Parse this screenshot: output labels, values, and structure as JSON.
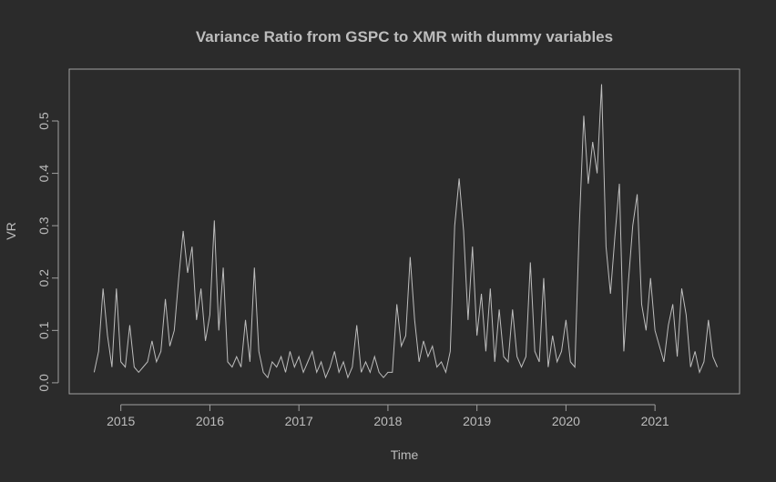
{
  "chart_data": {
    "type": "line",
    "title": "Variance Ratio from GSPC to XMR with dummy variables",
    "x_label": "Time",
    "y_label": "VR",
    "x": [
      2014.7,
      2014.75,
      2014.8,
      2014.85,
      2014.9,
      2014.95,
      2015.0,
      2015.05,
      2015.1,
      2015.15,
      2015.2,
      2015.25,
      2015.3,
      2015.35,
      2015.4,
      2015.45,
      2015.5,
      2015.55,
      2015.6,
      2015.65,
      2015.7,
      2015.75,
      2015.8,
      2015.85,
      2015.9,
      2015.95,
      2016.0,
      2016.05,
      2016.1,
      2016.15,
      2016.2,
      2016.25,
      2016.3,
      2016.35,
      2016.4,
      2016.45,
      2016.5,
      2016.55,
      2016.6,
      2016.65,
      2016.7,
      2016.75,
      2016.8,
      2016.85,
      2016.9,
      2016.95,
      2017.0,
      2017.05,
      2017.1,
      2017.15,
      2017.2,
      2017.25,
      2017.3,
      2017.35,
      2017.4,
      2017.45,
      2017.5,
      2017.55,
      2017.6,
      2017.65,
      2017.7,
      2017.75,
      2017.8,
      2017.85,
      2017.9,
      2017.95,
      2018.0,
      2018.05,
      2018.1,
      2018.15,
      2018.2,
      2018.25,
      2018.3,
      2018.35,
      2018.4,
      2018.45,
      2018.5,
      2018.55,
      2018.6,
      2018.65,
      2018.7,
      2018.75,
      2018.8,
      2018.85,
      2018.9,
      2018.95,
      2019.0,
      2019.05,
      2019.1,
      2019.15,
      2019.2,
      2019.25,
      2019.3,
      2019.35,
      2019.4,
      2019.45,
      2019.5,
      2019.55,
      2019.6,
      2019.65,
      2019.7,
      2019.75,
      2019.8,
      2019.85,
      2019.9,
      2019.95,
      2020.0,
      2020.05,
      2020.1,
      2020.15,
      2020.2,
      2020.25,
      2020.3,
      2020.35,
      2020.4,
      2020.45,
      2020.5,
      2020.55,
      2020.6,
      2020.65,
      2020.7,
      2020.75,
      2020.8,
      2020.85,
      2020.9,
      2020.95,
      2021.0,
      2021.05,
      2021.1,
      2021.15,
      2021.2,
      2021.25,
      2021.3,
      2021.35,
      2021.4,
      2021.45,
      2021.5,
      2021.55,
      2021.6,
      2021.65,
      2021.7
    ],
    "series": [
      {
        "color": "#bdbdbd",
        "values": [
          0.02,
          0.06,
          0.18,
          0.09,
          0.03,
          0.18,
          0.04,
          0.03,
          0.11,
          0.03,
          0.02,
          0.03,
          0.04,
          0.08,
          0.04,
          0.06,
          0.16,
          0.07,
          0.1,
          0.2,
          0.29,
          0.21,
          0.26,
          0.12,
          0.18,
          0.08,
          0.13,
          0.31,
          0.1,
          0.22,
          0.04,
          0.03,
          0.05,
          0.03,
          0.12,
          0.04,
          0.22,
          0.06,
          0.02,
          0.01,
          0.04,
          0.03,
          0.05,
          0.02,
          0.06,
          0.03,
          0.05,
          0.02,
          0.04,
          0.06,
          0.02,
          0.04,
          0.01,
          0.03,
          0.06,
          0.02,
          0.04,
          0.01,
          0.03,
          0.11,
          0.02,
          0.04,
          0.02,
          0.05,
          0.02,
          0.01,
          0.02,
          0.02,
          0.15,
          0.07,
          0.09,
          0.24,
          0.12,
          0.04,
          0.08,
          0.05,
          0.07,
          0.03,
          0.04,
          0.02,
          0.06,
          0.3,
          0.39,
          0.29,
          0.12,
          0.26,
          0.09,
          0.17,
          0.06,
          0.18,
          0.04,
          0.14,
          0.05,
          0.04,
          0.14,
          0.05,
          0.03,
          0.05,
          0.23,
          0.06,
          0.04,
          0.2,
          0.03,
          0.09,
          0.04,
          0.06,
          0.12,
          0.04,
          0.03,
          0.3,
          0.51,
          0.38,
          0.46,
          0.4,
          0.57,
          0.26,
          0.17,
          0.28,
          0.38,
          0.06,
          0.19,
          0.3,
          0.36,
          0.15,
          0.1,
          0.2,
          0.1,
          0.07,
          0.04,
          0.11,
          0.15,
          0.05,
          0.18,
          0.13,
          0.03,
          0.06,
          0.02,
          0.04,
          0.12,
          0.05,
          0.03
        ]
      }
    ],
    "xlim": [
      2014.42,
      2021.95
    ],
    "ylim": [
      -0.021,
      0.599
    ],
    "xticks": [
      2015,
      2016,
      2017,
      2018,
      2019,
      2020,
      2021
    ],
    "yticks": [
      {
        "value": 0,
        "label": "0.0"
      },
      0.1,
      0.2,
      0.3,
      0.4,
      0.5
    ],
    "axis_color": "#a0a0a0"
  }
}
